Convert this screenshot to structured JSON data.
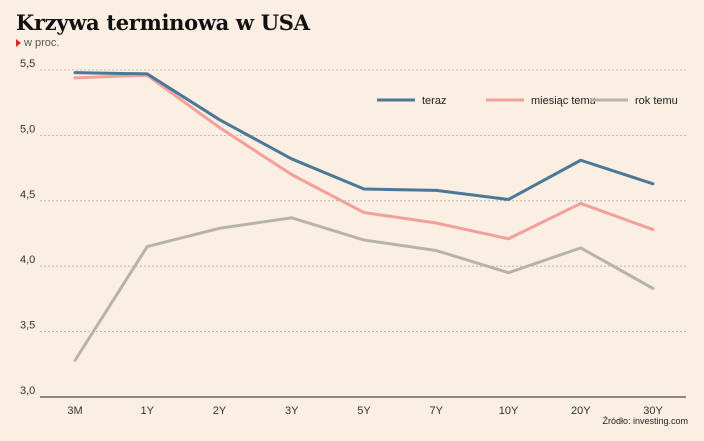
{
  "header": {
    "title": "Krzywa terminowa w USA",
    "subtitle": "w proc."
  },
  "source": "Źródło: investing.com",
  "chart_data": {
    "type": "line",
    "title": "Krzywa terminowa w USA",
    "subtitle": "w proc.",
    "xlabel": "",
    "ylabel": "",
    "categories": [
      "3M",
      "1Y",
      "2Y",
      "3Y",
      "5Y",
      "7Y",
      "10Y",
      "20Y",
      "30Y"
    ],
    "y_ticks": [
      "3,0",
      "3,5",
      "4,0",
      "4,5",
      "5,0",
      "5,5"
    ],
    "y_tick_values": [
      3.0,
      3.5,
      4.0,
      4.5,
      5.0,
      5.5
    ],
    "ylim": [
      3.0,
      5.5
    ],
    "grid": "horizontal dashed",
    "legend_position": "top-right",
    "series": [
      {
        "name": "teraz",
        "color": "#4a7896",
        "values": [
          5.48,
          5.47,
          5.12,
          4.82,
          4.59,
          4.58,
          4.51,
          4.81,
          4.63
        ]
      },
      {
        "name": "miesiąc temu",
        "color": "#f4a09a",
        "values": [
          5.44,
          5.46,
          5.06,
          4.7,
          4.41,
          4.33,
          4.21,
          4.48,
          4.28
        ]
      },
      {
        "name": "rok temu",
        "color": "#b8b3a8",
        "values": [
          3.28,
          4.15,
          4.29,
          4.37,
          4.2,
          4.12,
          3.95,
          4.14,
          3.83
        ]
      }
    ]
  }
}
